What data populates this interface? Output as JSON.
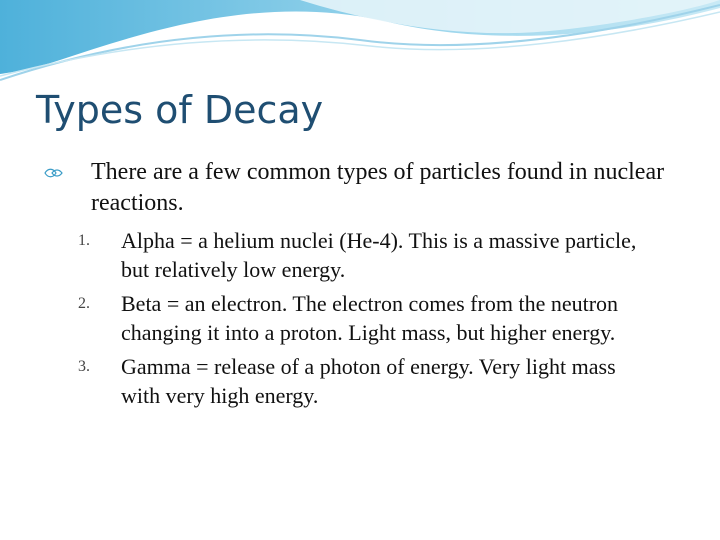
{
  "header": {
    "title": "Types of Decay"
  },
  "body": {
    "bullet": "There are a few common types of particles found in nuclear reactions.",
    "items": [
      {
        "number": "1.",
        "text": "Alpha = a helium nuclei (He-4).  This is a massive particle, but relatively low energy."
      },
      {
        "number": "2.",
        "text": "Beta = an electron.  The electron comes from the neutron changing it into a proton.  Light mass, but higher energy."
      },
      {
        "number": "3.",
        "text": "Gamma = release of a photon of energy.  Very light mass with very high energy."
      }
    ]
  }
}
